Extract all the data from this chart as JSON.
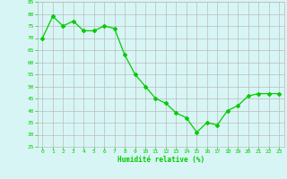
{
  "x": [
    0,
    1,
    2,
    3,
    4,
    5,
    6,
    7,
    8,
    9,
    10,
    11,
    12,
    13,
    14,
    15,
    16,
    17,
    18,
    19,
    20,
    21,
    22,
    23
  ],
  "y": [
    70,
    79,
    75,
    77,
    73,
    73,
    75,
    74,
    63,
    55,
    50,
    45,
    43,
    39,
    37,
    31,
    35,
    34,
    40,
    42,
    46,
    47,
    47,
    47
  ],
  "line_color": "#00cc00",
  "marker": "D",
  "marker_size": 2.0,
  "bg_color": "#d8f5f5",
  "grid_color": "#bbbbbb",
  "xlabel": "Humidité relative (%)",
  "xlabel_color": "#00cc00",
  "tick_color": "#00cc00",
  "ylim": [
    25,
    85
  ],
  "xlim": [
    -0.5,
    23.5
  ],
  "yticks": [
    25,
    30,
    35,
    40,
    45,
    50,
    55,
    60,
    65,
    70,
    75,
    80,
    85
  ],
  "xticks": [
    0,
    1,
    2,
    3,
    4,
    5,
    6,
    7,
    8,
    9,
    10,
    11,
    12,
    13,
    14,
    15,
    16,
    17,
    18,
    19,
    20,
    21,
    22,
    23
  ]
}
